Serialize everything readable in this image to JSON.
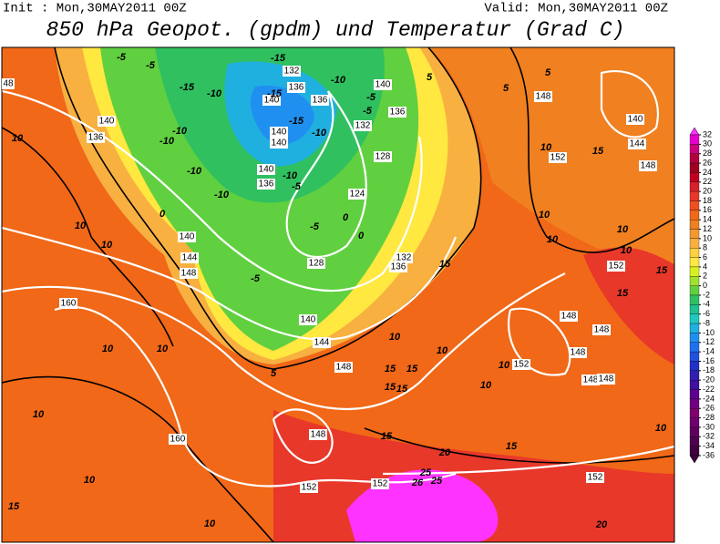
{
  "header": {
    "init": "Init : Mon,30MAY2011 00Z",
    "valid": "Valid: Mon,30MAY2011 00Z",
    "title": "850 hPa Geopot. (gpdm) und Temperatur (Grad C)"
  },
  "colorbar": {
    "ticks": [
      32,
      30,
      28,
      26,
      24,
      22,
      20,
      18,
      16,
      14,
      12,
      10,
      8,
      6,
      4,
      2,
      0,
      -2,
      -4,
      -6,
      -8,
      -10,
      -12,
      -14,
      -16,
      -18,
      -20,
      -22,
      -24,
      -26,
      -28,
      -30,
      -32,
      -34,
      -36
    ],
    "colors": [
      "#ff33ff",
      "#e600cc",
      "#cc0080",
      "#b3003c",
      "#a00020",
      "#c00020",
      "#d8202a",
      "#e8382a",
      "#f05020",
      "#f06818",
      "#f08020",
      "#f49830",
      "#f8b040",
      "#ffd040",
      "#ffe840",
      "#d8f020",
      "#a0e030",
      "#60d040",
      "#30c060",
      "#20c090",
      "#20c8c0",
      "#20b0e0",
      "#2090f0",
      "#2070f0",
      "#2050e0",
      "#2030c8",
      "#3020b0",
      "#4010a0",
      "#600090",
      "#700080",
      "#800070",
      "#700070",
      "#600060",
      "#500050",
      "#400040"
    ]
  },
  "geopotential_labels": [
    "132",
    "136",
    "140",
    "136",
    "140",
    "136",
    "132",
    "140",
    "140",
    "140",
    "136",
    "128",
    "124",
    "132",
    "136",
    "128",
    "140",
    "144",
    "148",
    "140",
    "136",
    "140",
    "144",
    "148",
    "160",
    "148",
    "140",
    "144",
    "148",
    "152",
    "152",
    "148",
    "148",
    "148",
    "152",
    "148",
    "148",
    "148",
    "160",
    "152",
    "152",
    "152",
    "48"
  ],
  "temperature_labels": [
    "-5",
    "-5",
    "-15",
    "-10",
    "-5",
    "-5",
    "-15",
    "-10",
    "-15",
    "-15",
    "-10",
    "-10",
    "-10",
    "-10",
    "-10",
    "-10",
    "-5",
    "-5",
    "0",
    "0",
    "0",
    "-5",
    "5",
    "5",
    "5",
    "10",
    "10",
    "10",
    "10",
    "10",
    "10",
    "10",
    "10",
    "15",
    "15",
    "10",
    "10",
    "10",
    "10",
    "10",
    "10",
    "15",
    "15",
    "15",
    "15",
    "15",
    "15",
    "20",
    "25",
    "26",
    "25",
    "20",
    "10",
    "10",
    "15",
    "10",
    "5",
    "10",
    "15",
    "15"
  ]
}
